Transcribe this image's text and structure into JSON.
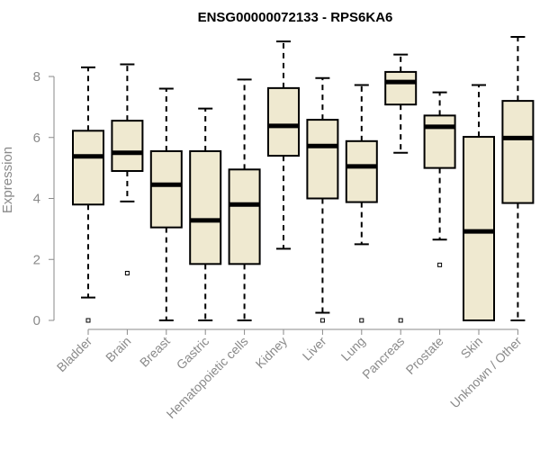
{
  "chart_data": {
    "type": "boxplot",
    "title": "ENSG00000072133 - RPS6KA6",
    "xlabel": "",
    "ylabel": "Expression",
    "ylim": [
      0,
      9.35
    ],
    "yticks": [
      0,
      2,
      4,
      6,
      8
    ],
    "grid": false,
    "box_color": "#efe9d0",
    "categories": [
      "Bladder",
      "Brain",
      "Breast",
      "Gastric",
      "Hematopoietic cells",
      "Kidney",
      "Liver",
      "Lung",
      "Pancreas",
      "Prostate",
      "Skin",
      "Unknown / Other"
    ],
    "boxes": [
      {
        "whisker_low": 0.75,
        "q1": 3.8,
        "median": 5.38,
        "q3": 6.22,
        "whisker_high": 8.3,
        "outliers": [
          0.0
        ]
      },
      {
        "whisker_low": 3.9,
        "q1": 4.9,
        "median": 5.5,
        "q3": 6.55,
        "whisker_high": 8.4,
        "outliers": [
          1.55
        ]
      },
      {
        "whisker_low": 0.0,
        "q1": 3.05,
        "median": 4.45,
        "q3": 5.55,
        "whisker_high": 7.6,
        "outliers": []
      },
      {
        "whisker_low": 0.0,
        "q1": 1.85,
        "median": 3.28,
        "q3": 5.55,
        "whisker_high": 6.95,
        "outliers": []
      },
      {
        "whisker_low": 0.0,
        "q1": 1.85,
        "median": 3.8,
        "q3": 4.95,
        "whisker_high": 7.9,
        "outliers": []
      },
      {
        "whisker_low": 2.35,
        "q1": 5.4,
        "median": 6.38,
        "q3": 7.62,
        "whisker_high": 9.15,
        "outliers": []
      },
      {
        "whisker_low": 0.25,
        "q1": 4.0,
        "median": 5.72,
        "q3": 6.58,
        "whisker_high": 7.95,
        "outliers": [
          0.0
        ]
      },
      {
        "whisker_low": 2.5,
        "q1": 3.88,
        "median": 5.05,
        "q3": 5.88,
        "whisker_high": 7.72,
        "outliers": [
          0.0
        ]
      },
      {
        "whisker_low": 5.5,
        "q1": 7.08,
        "median": 7.82,
        "q3": 8.15,
        "whisker_high": 8.72,
        "outliers": [
          0.0
        ]
      },
      {
        "whisker_low": 2.65,
        "q1": 5.0,
        "median": 6.35,
        "q3": 6.72,
        "whisker_high": 7.48,
        "outliers": [
          1.82
        ]
      },
      {
        "whisker_low": 0.0,
        "q1": 0.0,
        "median": 2.92,
        "q3": 6.02,
        "whisker_high": 7.72,
        "outliers": []
      },
      {
        "whisker_low": 0.0,
        "q1": 3.85,
        "median": 5.98,
        "q3": 7.2,
        "whisker_high": 9.3,
        "outliers": []
      }
    ]
  }
}
